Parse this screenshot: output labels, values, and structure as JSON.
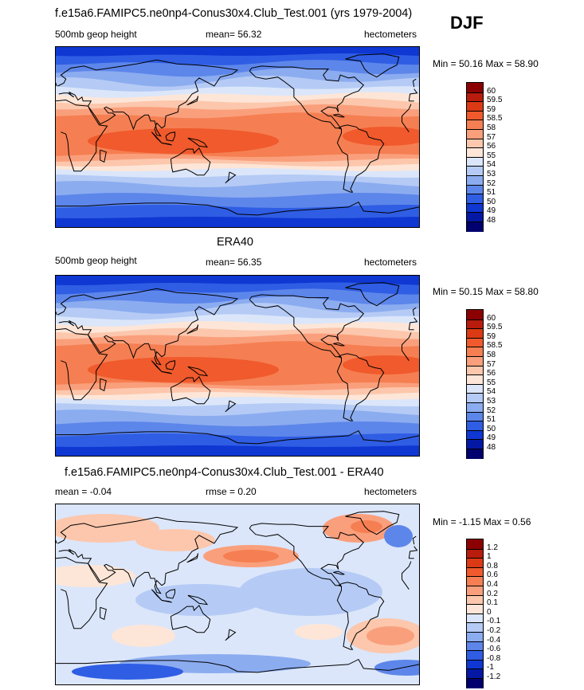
{
  "header": {
    "main_title": "f.e15a6.FAMIPC5.ne0np4-Conus30x4.Club_Test.001 (yrs 1979-2004)",
    "season": "DJF"
  },
  "panels": [
    {
      "id": "model",
      "title": "",
      "left_label": "500mb geop height",
      "center_label": "mean=  56.32",
      "right_label": "hectometers",
      "minmax": "Min =  50.16 Max =  58.90",
      "kind": "absolute"
    },
    {
      "id": "obs",
      "title": "ERA40",
      "left_label": "500mb geop height",
      "center_label": "mean=  56.35",
      "right_label": "hectometers",
      "minmax": "Min =  50.15 Max =  58.80",
      "kind": "absolute"
    },
    {
      "id": "diff",
      "title": "f.e15a6.FAMIPC5.ne0np4-Conus30x4.Club_Test.001 - ERA40",
      "left_label": "mean =  -0.04",
      "center_label": "rmse =   0.20",
      "right_label": "hectometers",
      "minmax": "Min =  -1.15 Max =   0.56",
      "kind": "difference"
    }
  ],
  "colorbars": {
    "absolute": {
      "labels": [
        "60",
        "59.5",
        "59",
        "58.5",
        "58",
        "57",
        "56",
        "55",
        "54",
        "53",
        "52",
        "51",
        "50",
        "49",
        "48"
      ],
      "colors": [
        "#8b0000",
        "#b81c0c",
        "#dc3a14",
        "#f05a2c",
        "#f57f52",
        "#fa9f7c",
        "#fcc7ac",
        "#fde6d8",
        "#dbe6fa",
        "#b5cbf5",
        "#8cacf0",
        "#5d86ea",
        "#2f5de4",
        "#0f37d2",
        "#0418a4",
        "#00006e"
      ]
    },
    "difference": {
      "labels": [
        "1.2",
        "1",
        "0.8",
        "0.6",
        "0.4",
        "0.2",
        "0.1",
        "0",
        "-0.1",
        "-0.2",
        "-0.4",
        "-0.6",
        "-0.8",
        "-1",
        "-1.2"
      ],
      "colors": [
        "#8b0000",
        "#b81c0c",
        "#dc3a14",
        "#f05a2c",
        "#f57f52",
        "#fa9f7c",
        "#fcc7ac",
        "#fde6d8",
        "#dbe6fa",
        "#b5cbf5",
        "#8cacf0",
        "#5d86ea",
        "#2f5de4",
        "#0f37d2",
        "#0418a4",
        "#00006e"
      ]
    }
  }
}
